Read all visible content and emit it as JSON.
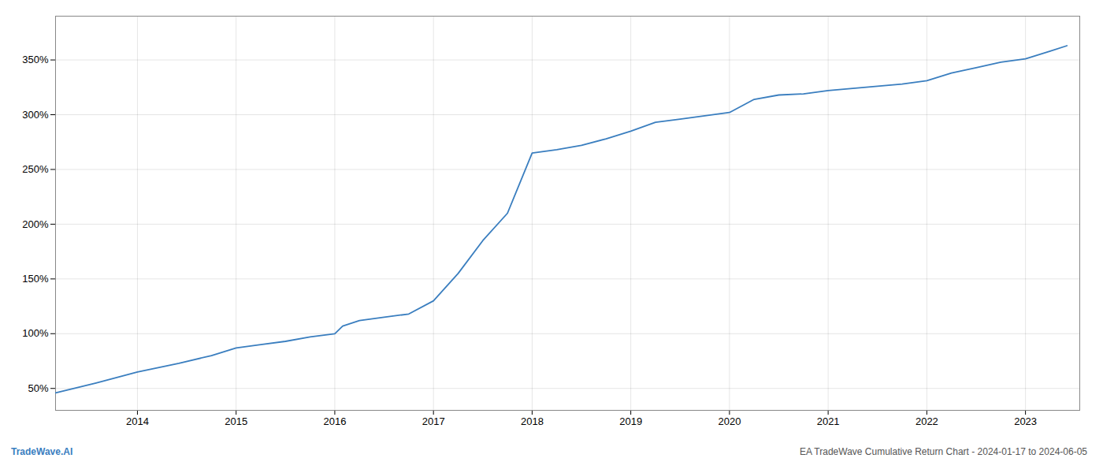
{
  "chart_data": {
    "type": "line",
    "title": "EA TradeWave Cumulative Return Chart - 2024-01-17 to 2024-06-05",
    "annotations": [
      "TradeWave.AI"
    ],
    "color": "#3a7ebf",
    "grid": true,
    "x": [
      2013.17,
      2013.58,
      2014.0,
      2014.42,
      2014.75,
      2015.0,
      2015.25,
      2015.5,
      2015.75,
      2016.0,
      2016.08,
      2016.25,
      2016.5,
      2016.75,
      2017.0,
      2017.25,
      2017.5,
      2017.75,
      2018.0,
      2018.25,
      2018.5,
      2018.75,
      2019.0,
      2019.25,
      2019.5,
      2019.75,
      2020.0,
      2020.25,
      2020.5,
      2020.75,
      2021.0,
      2021.25,
      2021.5,
      2021.75,
      2022.0,
      2022.25,
      2022.5,
      2022.75,
      2023.0,
      2023.25,
      2023.42
    ],
    "values": [
      46,
      55,
      65,
      73,
      80,
      87,
      90,
      93,
      97,
      100,
      107,
      112,
      115,
      118,
      130,
      155,
      185,
      210,
      265,
      268,
      272,
      278,
      285,
      293,
      296,
      299,
      302,
      314,
      318,
      319,
      322,
      324,
      326,
      328,
      331,
      338,
      343,
      348,
      351,
      358,
      363
    ],
    "xlim": [
      2013.17,
      2023.55
    ],
    "xticks": [
      2014,
      2015,
      2016,
      2017,
      2018,
      2019,
      2020,
      2021,
      2022,
      2023
    ],
    "ylim": [
      30,
      390
    ],
    "yticks": [
      {
        "value": 50,
        "label": "50%"
      },
      {
        "value": 100,
        "label": "100%"
      },
      {
        "value": 150,
        "label": "150%"
      },
      {
        "value": 200,
        "label": "200%"
      },
      {
        "value": 250,
        "label": "250%"
      },
      {
        "value": 300,
        "label": "300%"
      },
      {
        "value": 350,
        "label": "350%"
      }
    ]
  }
}
